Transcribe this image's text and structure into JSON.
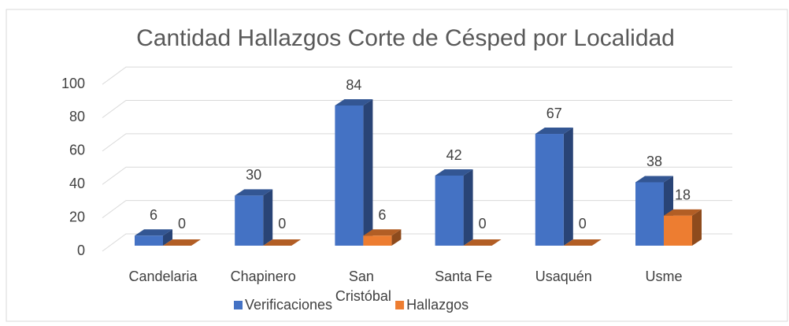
{
  "chart_data": {
    "type": "bar3d",
    "title": "Cantidad Hallazgos Corte de Césped por Localidad",
    "categories": [
      "Candelaria",
      "Chapinero",
      "San Cristóbal",
      "Santa Fe",
      "Usaquén",
      "Usme"
    ],
    "series": [
      {
        "name": "Verificaciones",
        "color": "#4472c4",
        "values": [
          6,
          30,
          84,
          42,
          67,
          38
        ]
      },
      {
        "name": "Hallazgos",
        "color": "#ed7d31",
        "values": [
          0,
          0,
          6,
          0,
          0,
          18
        ]
      }
    ],
    "ylim": [
      0,
      100
    ],
    "yticks": [
      0,
      20,
      40,
      60,
      80,
      100
    ],
    "grid": true,
    "legend": "bottom"
  }
}
